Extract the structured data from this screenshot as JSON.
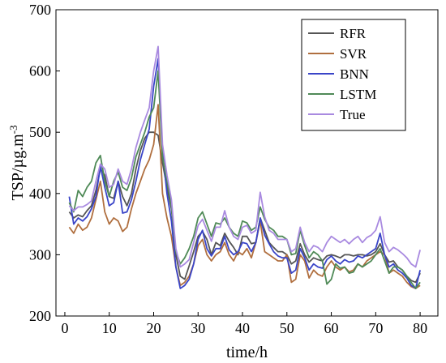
{
  "chart_data": {
    "type": "line",
    "title": "",
    "xlabel": "time/h",
    "ylabel": "TSP/µg.m",
    "ylabel_superscript": "-3",
    "xlim": [
      -2,
      84
    ],
    "ylim": [
      200,
      700
    ],
    "xticks": [
      0,
      10,
      20,
      30,
      40,
      50,
      60,
      70,
      80
    ],
    "yticks": [
      200,
      300,
      400,
      500,
      600,
      700
    ],
    "x": [
      1,
      2,
      3,
      4,
      5,
      6,
      7,
      8,
      9,
      10,
      11,
      12,
      13,
      14,
      15,
      16,
      17,
      18,
      19,
      20,
      21,
      22,
      23,
      24,
      25,
      26,
      27,
      28,
      29,
      30,
      31,
      32,
      33,
      34,
      35,
      36,
      37,
      38,
      39,
      40,
      41,
      42,
      43,
      44,
      45,
      46,
      47,
      48,
      49,
      50,
      51,
      52,
      53,
      54,
      55,
      56,
      57,
      58,
      59,
      60,
      61,
      62,
      63,
      64,
      65,
      66,
      67,
      68,
      69,
      70,
      71,
      72,
      73,
      74,
      75,
      76,
      77,
      78,
      79,
      80
    ],
    "legend_position": "top-right",
    "grid": false,
    "series": [
      {
        "name": "RFR",
        "color": "#555555",
        "values": [
          370,
          360,
          365,
          362,
          372,
          380,
          405,
          440,
          430,
          395,
          392,
          420,
          395,
          380,
          400,
          440,
          470,
          490,
          500,
          500,
          495,
          450,
          410,
          375,
          300,
          265,
          260,
          282,
          305,
          330,
          338,
          325,
          300,
          320,
          315,
          335,
          322,
          312,
          300,
          330,
          330,
          318,
          320,
          360,
          340,
          320,
          312,
          305,
          305,
          300,
          285,
          290,
          318,
          300,
          288,
          295,
          292,
          290,
          298,
          300,
          298,
          295,
          300,
          300,
          298,
          300,
          300,
          298,
          300,
          305,
          318,
          300,
          288,
          290,
          280,
          275,
          265,
          258,
          255,
          270
        ]
      },
      {
        "name": "SVR",
        "color": "#b06f3f",
        "values": [
          345,
          335,
          350,
          340,
          345,
          360,
          390,
          420,
          370,
          350,
          360,
          355,
          338,
          345,
          375,
          400,
          420,
          440,
          455,
          480,
          545,
          400,
          360,
          330,
          280,
          250,
          255,
          265,
          285,
          315,
          325,
          300,
          290,
          300,
          305,
          320,
          300,
          290,
          305,
          300,
          310,
          295,
          320,
          355,
          305,
          300,
          295,
          290,
          290,
          300,
          255,
          260,
          300,
          290,
          262,
          275,
          268,
          265,
          280,
          290,
          280,
          275,
          280,
          272,
          275,
          285,
          280,
          290,
          295,
          300,
          305,
          300,
          270,
          275,
          270,
          265,
          255,
          248,
          245,
          250
        ]
      },
      {
        "name": "BNN",
        "color": "#3a45c8",
        "values": [
          395,
          350,
          360,
          355,
          362,
          375,
          395,
          445,
          410,
          380,
          385,
          420,
          368,
          370,
          390,
          420,
          455,
          480,
          505,
          575,
          620,
          470,
          400,
          355,
          280,
          245,
          250,
          260,
          285,
          325,
          340,
          310,
          298,
          310,
          310,
          330,
          308,
          300,
          305,
          320,
          318,
          305,
          320,
          360,
          332,
          318,
          305,
          298,
          295,
          295,
          270,
          275,
          310,
          295,
          275,
          285,
          280,
          278,
          292,
          298,
          290,
          285,
          292,
          288,
          290,
          298,
          295,
          300,
          305,
          310,
          335,
          300,
          280,
          285,
          275,
          270,
          262,
          250,
          245,
          275
        ]
      },
      {
        "name": "LSTM",
        "color": "#4f8a57",
        "values": [
          385,
          370,
          405,
          395,
          410,
          420,
          450,
          462,
          420,
          395,
          420,
          435,
          410,
          405,
          425,
          460,
          480,
          500,
          525,
          540,
          600,
          460,
          420,
          380,
          305,
          285,
          295,
          310,
          330,
          360,
          370,
          350,
          330,
          352,
          350,
          360,
          345,
          335,
          330,
          355,
          352,
          340,
          345,
          378,
          358,
          345,
          340,
          330,
          330,
          325,
          300,
          302,
          340,
          315,
          295,
          305,
          300,
          290,
          252,
          260,
          285,
          278,
          280,
          270,
          272,
          285,
          280,
          285,
          290,
          300,
          310,
          290,
          270,
          280,
          280,
          275,
          265,
          255,
          245,
          255
        ]
      },
      {
        "name": "True",
        "color": "#a98ae0",
        "values": [
          380,
          372,
          378,
          378,
          382,
          388,
          420,
          448,
          440,
          410,
          415,
          440,
          420,
          415,
          440,
          475,
          500,
          520,
          540,
          600,
          640,
          480,
          430,
          390,
          310,
          280,
          285,
          292,
          320,
          348,
          358,
          340,
          322,
          345,
          345,
          372,
          345,
          330,
          325,
          345,
          348,
          335,
          340,
          402,
          362,
          340,
          335,
          325,
          325,
          325,
          305,
          310,
          345,
          320,
          305,
          315,
          312,
          305,
          320,
          330,
          325,
          320,
          325,
          318,
          325,
          330,
          320,
          328,
          332,
          340,
          362,
          320,
          305,
          312,
          308,
          302,
          295,
          285,
          280,
          308
        ]
      }
    ]
  }
}
